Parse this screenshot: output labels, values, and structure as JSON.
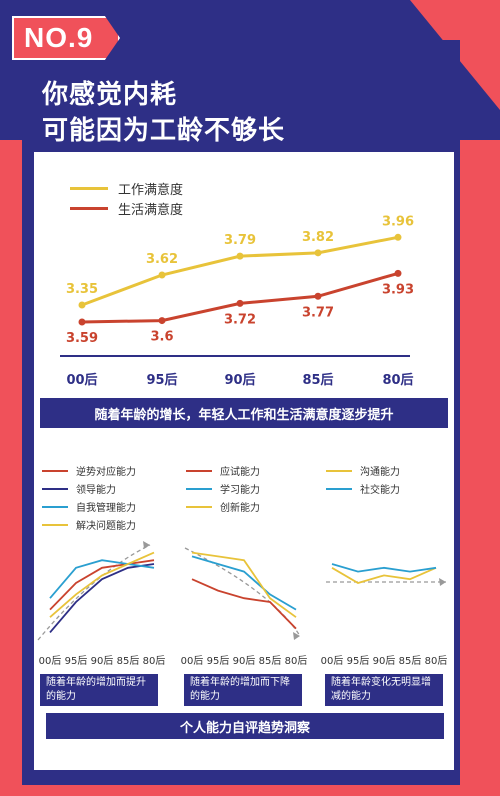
{
  "badge": "NO.9",
  "title_line1": "你感觉内耗",
  "title_line2": "可能因为工龄不够长",
  "legend": {
    "work": {
      "label": "工作满意度",
      "color": "#e8c33a"
    },
    "life": {
      "label": "生活满意度",
      "color": "#c9432e"
    }
  },
  "chart_data": [
    {
      "type": "line",
      "categories": [
        "00后",
        "95后",
        "90后",
        "85后",
        "80后"
      ],
      "series": [
        {
          "name": "工作满意度",
          "values": [
            3.35,
            3.62,
            3.79,
            3.82,
            3.96
          ]
        },
        {
          "name": "生活满意度",
          "values": [
            3.59,
            3.6,
            3.72,
            3.77,
            3.93
          ]
        }
      ]
    },
    {
      "type": "line",
      "categories": [
        "00后",
        "95后",
        "90后",
        "85后",
        "80后"
      ],
      "series": [
        {
          "name": "逆势对应能力",
          "values": [
            2.8,
            3.5,
            3.9,
            4.0,
            4.1
          ]
        },
        {
          "name": "领导能力",
          "values": [
            2.2,
            3.0,
            3.6,
            3.9,
            4.0
          ]
        },
        {
          "name": "自我管理能力",
          "values": [
            3.1,
            3.9,
            4.1,
            4.0,
            3.9
          ]
        },
        {
          "name": "解决问题能力",
          "values": [
            2.6,
            3.2,
            3.7,
            4.0,
            4.3
          ]
        }
      ]
    },
    {
      "type": "line",
      "categories": [
        "00后",
        "95后",
        "90后",
        "85后",
        "80后"
      ],
      "series": [
        {
          "name": "应试能力",
          "values": [
            3.6,
            3.3,
            3.1,
            3.0,
            2.3
          ]
        },
        {
          "name": "学习能力",
          "values": [
            4.2,
            4.0,
            3.8,
            3.2,
            2.8
          ]
        },
        {
          "name": "创新能力",
          "values": [
            4.3,
            4.2,
            4.1,
            3.1,
            2.6
          ]
        }
      ]
    },
    {
      "type": "line",
      "categories": [
        "00后",
        "95后",
        "90后",
        "85后",
        "80后"
      ],
      "series": [
        {
          "name": "沟通能力",
          "values": [
            3.9,
            3.5,
            3.7,
            3.6,
            3.9
          ]
        },
        {
          "name": "社交能力",
          "values": [
            4.0,
            3.8,
            3.9,
            3.8,
            3.9
          ]
        }
      ]
    }
  ],
  "banner_text": "随着年龄的增长，年轻人工作和生活满意度逐步提升",
  "ability_legend": [
    {
      "label": "逆势对应能力",
      "color": "#c9432e"
    },
    {
      "label": "应试能力",
      "color": "#c9432e"
    },
    {
      "label": "沟通能力",
      "color": "#e8c33a"
    },
    {
      "label": "领导能力",
      "color": "#2e2f86"
    },
    {
      "label": "学习能力",
      "color": "#2a9fd0"
    },
    {
      "label": "社交能力",
      "color": "#2a9fd0"
    },
    {
      "label": "自我管理能力",
      "color": "#2a9fd0"
    },
    {
      "label": "创新能力",
      "color": "#e8c33a"
    },
    {
      "label": "解决问题能力",
      "color": "#e8c33a"
    }
  ],
  "captions": {
    "increase": "随着年龄的增加而提升的能力",
    "decrease": "随着年龄的增加而下降的能力",
    "flat": "随着年龄变化无明显增减的能力"
  },
  "bottom_banner": "个人能力自评趋势洞察"
}
